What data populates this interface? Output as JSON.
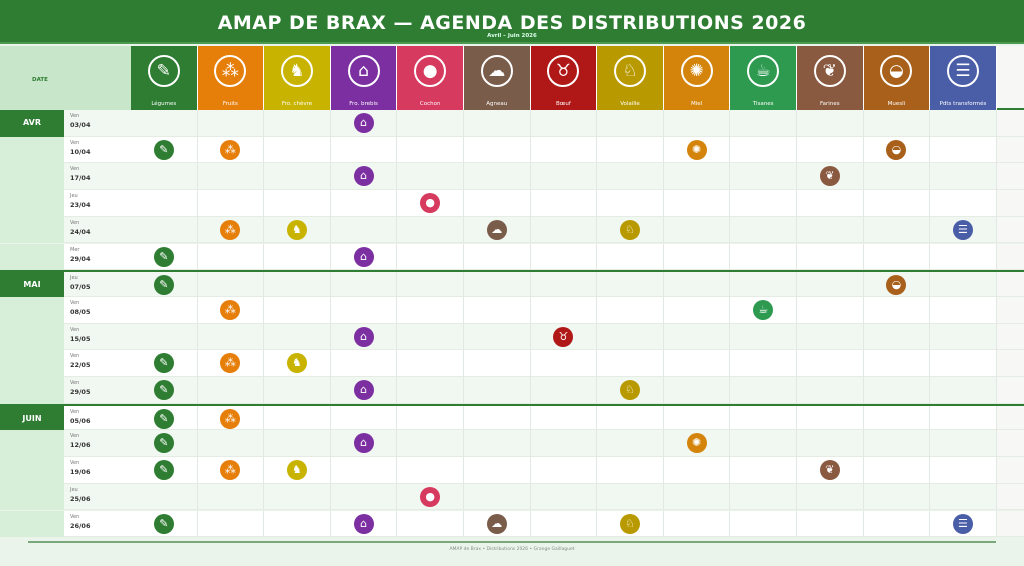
{
  "header": {
    "title": "AMAP DE BRAX  —  AGENDA DES DISTRIBUTIONS 2026",
    "subtitle": "Avril – Juin 2026"
  },
  "date_header": "DATE",
  "products": [
    {
      "label": "Légumes",
      "icon": "carrot-icon",
      "glyph": "✎",
      "color": "#2e7d32"
    },
    {
      "label": "Fruits",
      "icon": "grapes-icon",
      "glyph": "⁂",
      "color": "#e67e0a"
    },
    {
      "label": "Fro. chèvre",
      "icon": "goat-icon",
      "glyph": "♞",
      "color": "#c8b400"
    },
    {
      "label": "Fro. brebis",
      "icon": "cheese-icon",
      "glyph": "⌂",
      "color": "#7b2fa0"
    },
    {
      "label": "Cochon",
      "icon": "pig-icon",
      "glyph": "●",
      "color": "#d63a5e"
    },
    {
      "label": "Agneau",
      "icon": "sheep-icon",
      "glyph": "☁",
      "color": "#7a5c4a"
    },
    {
      "label": "Bœuf",
      "icon": "cow-icon",
      "glyph": "♉",
      "color": "#b01818"
    },
    {
      "label": "Volaille",
      "icon": "chicken-icon",
      "glyph": "♘",
      "color": "#b89a00"
    },
    {
      "label": "Miel",
      "icon": "bee-icon",
      "glyph": "✺",
      "color": "#d4840a"
    },
    {
      "label": "Tisanes",
      "icon": "tea-cup-icon",
      "glyph": "☕",
      "color": "#2e9a50"
    },
    {
      "label": "Farines",
      "icon": "wheat-icon",
      "glyph": "❦",
      "color": "#8a5a40"
    },
    {
      "label": "Muesli",
      "icon": "bowl-icon",
      "glyph": "◒",
      "color": "#a8601a"
    },
    {
      "label": "Pdts transformés",
      "icon": "jar-icon",
      "glyph": "☰",
      "color": "#4a5ea8"
    }
  ],
  "rows": [
    {
      "month": "AVR",
      "day": "Ven",
      "date": "03/04",
      "items": [
        3
      ]
    },
    {
      "day": "Ven",
      "date": "10/04",
      "items": [
        0,
        1,
        8,
        11
      ]
    },
    {
      "day": "Ven",
      "date": "17/04",
      "items": [
        3,
        10
      ]
    },
    {
      "day": "Jeu",
      "date": "23/04",
      "items": [
        4
      ]
    },
    {
      "day": "Ven",
      "date": "24/04",
      "items": [
        1,
        2,
        5,
        7,
        12
      ]
    },
    {
      "day": "Mer",
      "date": "29/04",
      "items": [
        0,
        3
      ]
    },
    {
      "month": "MAI",
      "day": "Jeu",
      "date": "07/05",
      "items": [
        0,
        11
      ]
    },
    {
      "day": "Ven",
      "date": "08/05",
      "items": [
        1,
        9
      ]
    },
    {
      "day": "Ven",
      "date": "15/05",
      "items": [
        3,
        6
      ]
    },
    {
      "day": "Ven",
      "date": "22/05",
      "items": [
        0,
        1,
        2
      ]
    },
    {
      "day": "Ven",
      "date": "29/05",
      "items": [
        0,
        3,
        7
      ]
    },
    {
      "month": "JUIN",
      "day": "Ven",
      "date": "05/06",
      "items": [
        0,
        1
      ]
    },
    {
      "day": "Ven",
      "date": "12/06",
      "items": [
        0,
        3,
        8
      ]
    },
    {
      "day": "Ven",
      "date": "19/06",
      "items": [
        0,
        1,
        2,
        10
      ]
    },
    {
      "day": "Jeu",
      "date": "25/06",
      "items": [
        4
      ]
    },
    {
      "day": "Ven",
      "date": "26/06",
      "items": [
        0,
        3,
        5,
        7,
        12
      ]
    }
  ],
  "footer": "AMAP de Brax  •  Distributions 2026  •  Grange Gaillaguet"
}
